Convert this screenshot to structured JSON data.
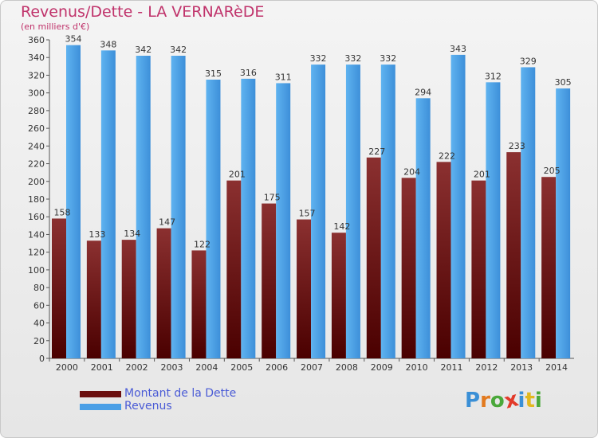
{
  "title": "Revenus/Dette - LA VERNARèDE",
  "subtitle": "(en milliers d'€)",
  "chart_data": {
    "type": "bar",
    "categories": [
      "2000",
      "2001",
      "2002",
      "2003",
      "2004",
      "2005",
      "2006",
      "2007",
      "2008",
      "2009",
      "2010",
      "2011",
      "2012",
      "2013",
      "2014"
    ],
    "series": [
      {
        "name": "Montant de la Dette",
        "color": "#8b1a1a",
        "values": [
          158,
          133,
          134,
          147,
          122,
          201,
          175,
          157,
          142,
          227,
          204,
          222,
          201,
          233,
          205
        ]
      },
      {
        "name": "Revenus",
        "color": "#4a9fe6",
        "values": [
          354,
          348,
          342,
          342,
          315,
          316,
          311,
          332,
          332,
          332,
          294,
          343,
          312,
          329,
          305
        ]
      }
    ],
    "ylim": [
      0,
      360
    ],
    "yticks": [
      0,
      20,
      40,
      60,
      80,
      100,
      120,
      140,
      160,
      180,
      200,
      220,
      240,
      260,
      280,
      300,
      320,
      340,
      360
    ],
    "grid": false,
    "legend_position": "bottom-left"
  },
  "logo": {
    "letters": [
      "P",
      "r",
      "o",
      "x",
      "i",
      "t",
      "i"
    ],
    "colors": [
      "#3a8fd6",
      "#e27a1f",
      "#4aa83a",
      "#e23a2a",
      "#3a8fd6",
      "#e2b81f",
      "#4aa83a"
    ]
  }
}
